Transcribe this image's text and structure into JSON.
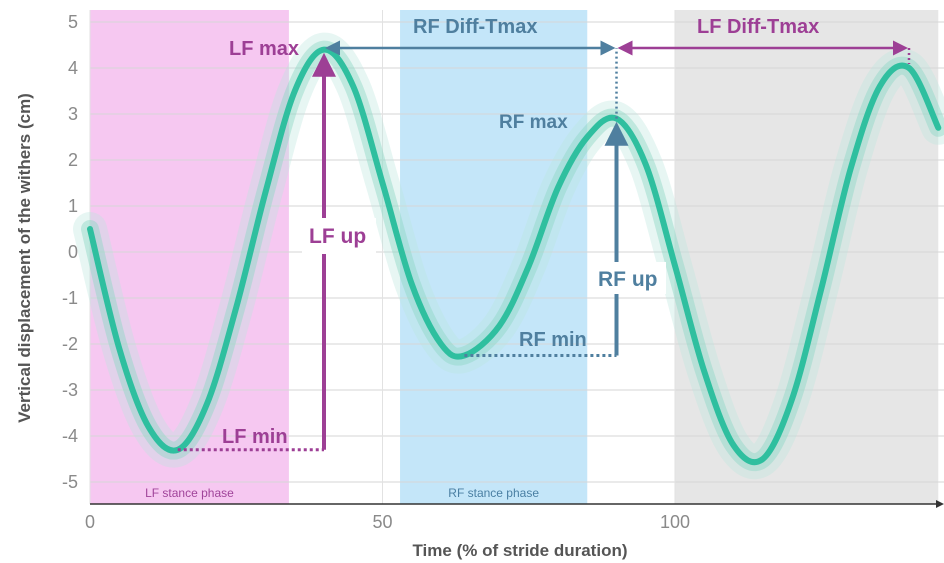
{
  "chart_data": {
    "type": "line",
    "title": "",
    "xlabel": "Time (% of stride duration)",
    "ylabel": "Vertical displacement of the withers (cm)",
    "xlim": [
      0,
      145
    ],
    "ylim": [
      -5.5,
      5.2
    ],
    "xticks": [
      "0",
      "50",
      "100"
    ],
    "yticks": [
      "5",
      "4",
      "3",
      "2",
      "1",
      "0",
      "-1",
      "-2",
      "-3",
      "-4",
      "-5"
    ],
    "grid": true,
    "series": [
      {
        "color": "#2fbf9f",
        "x": [
          0,
          5,
          10,
          15,
          20,
          25,
          30,
          35,
          40,
          45,
          50,
          55,
          60,
          64,
          70,
          75,
          80,
          85,
          90,
          95,
          100,
          105,
          110,
          115,
          120,
          125,
          130,
          135,
          140,
          145
        ],
        "y": [
          0.5,
          -2.1,
          -3.8,
          -4.3,
          -3.3,
          -1.2,
          1.3,
          3.5,
          4.4,
          3.6,
          1.5,
          -0.7,
          -2.0,
          -2.25,
          -1.6,
          -0.3,
          1.4,
          2.5,
          2.9,
          1.9,
          -0.3,
          -2.6,
          -4.2,
          -4.5,
          -3.2,
          -0.8,
          1.8,
          3.6,
          4.0,
          2.7
        ]
      }
    ],
    "bands": [
      {
        "x0": 0,
        "x1": 34,
        "label": "LF stance phase",
        "color": "#f6c8f1",
        "label_color": "#a0449a"
      },
      {
        "x0": 53,
        "x1": 85,
        "label": "RF stance phase",
        "color": "#c4e6f9",
        "label_color": "#4a7fa3"
      },
      {
        "x0": 100,
        "x1": 145,
        "label": "",
        "color": "#e6e6e6",
        "label_color": "#777777"
      }
    ],
    "annotations": {
      "lf_max": {
        "text": "LF max",
        "x": 40,
        "y": 4.4,
        "color": "#9d3f95"
      },
      "lf_min": {
        "text": "LF min",
        "x": 15,
        "y": -4.3,
        "color": "#9d3f95"
      },
      "lf_up": {
        "text": "LF up",
        "color": "#9d3f95"
      },
      "rf_max": {
        "text": "RF max",
        "x": 90,
        "y": 2.9,
        "color": "#4f7f9f"
      },
      "rf_min": {
        "text": "RF min",
        "x": 64,
        "y": -2.25,
        "color": "#4f7f9f"
      },
      "rf_up": {
        "text": "RF up",
        "color": "#4f7f9f"
      },
      "rf_diff_tmax": {
        "text": "RF Diff-Tmax",
        "x0": 40,
        "x1": 90,
        "color": "#4f7f9f"
      },
      "lf_diff_tmax": {
        "text": "LF Diff-Tmax",
        "x0": 90,
        "x1": 140,
        "color": "#9d3f95"
      }
    }
  }
}
